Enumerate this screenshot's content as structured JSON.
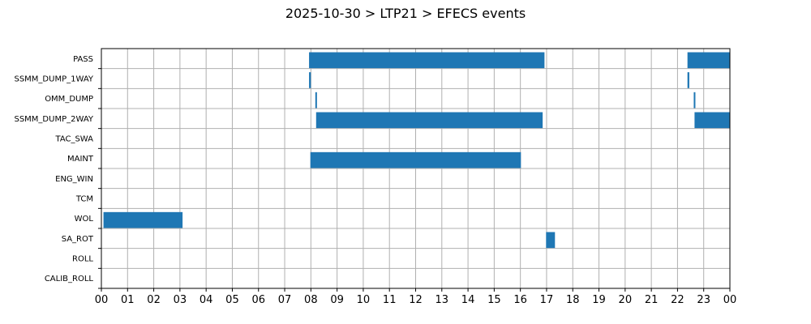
{
  "chart_data": {
    "type": "bar",
    "orientation": "horizontal-timeline",
    "title": "2025-10-30 > LTP21 > EFECS events",
    "xlabel": "",
    "ylabel": "",
    "xlim": [
      0,
      24
    ],
    "x_tick_labels": [
      "00",
      "01",
      "02",
      "03",
      "04",
      "05",
      "06",
      "07",
      "08",
      "09",
      "10",
      "11",
      "12",
      "13",
      "14",
      "15",
      "16",
      "17",
      "18",
      "19",
      "20",
      "21",
      "22",
      "23",
      "00"
    ],
    "categories": [
      "PASS",
      "SSMM_DUMP_1WAY",
      "OMM_DUMP",
      "SSMM_DUMP_2WAY",
      "TAC_SWA",
      "MAINT",
      "ENG_WIN",
      "TCM",
      "WOL",
      "SA_ROT",
      "ROLL",
      "CALIB_ROLL"
    ],
    "grid": true,
    "bar_color": "#1f77b4",
    "events": [
      {
        "category": "PASS",
        "start": 7.93,
        "end": 16.92
      },
      {
        "category": "PASS",
        "start": 22.38,
        "end": 24.0
      },
      {
        "category": "SSMM_DUMP_1WAY",
        "start": 7.93,
        "end": 8.0
      },
      {
        "category": "SSMM_DUMP_1WAY",
        "start": 22.38,
        "end": 22.45
      },
      {
        "category": "OMM_DUMP",
        "start": 8.17,
        "end": 8.22
      },
      {
        "category": "OMM_DUMP",
        "start": 22.62,
        "end": 22.65
      },
      {
        "category": "SSMM_DUMP_2WAY",
        "start": 8.2,
        "end": 16.85
      },
      {
        "category": "SSMM_DUMP_2WAY",
        "start": 22.65,
        "end": 24.0
      },
      {
        "category": "MAINT",
        "start": 7.98,
        "end": 16.02
      },
      {
        "category": "WOL",
        "start": 0.08,
        "end": 3.1
      },
      {
        "category": "SA_ROT",
        "start": 16.98,
        "end": 17.32
      }
    ]
  }
}
